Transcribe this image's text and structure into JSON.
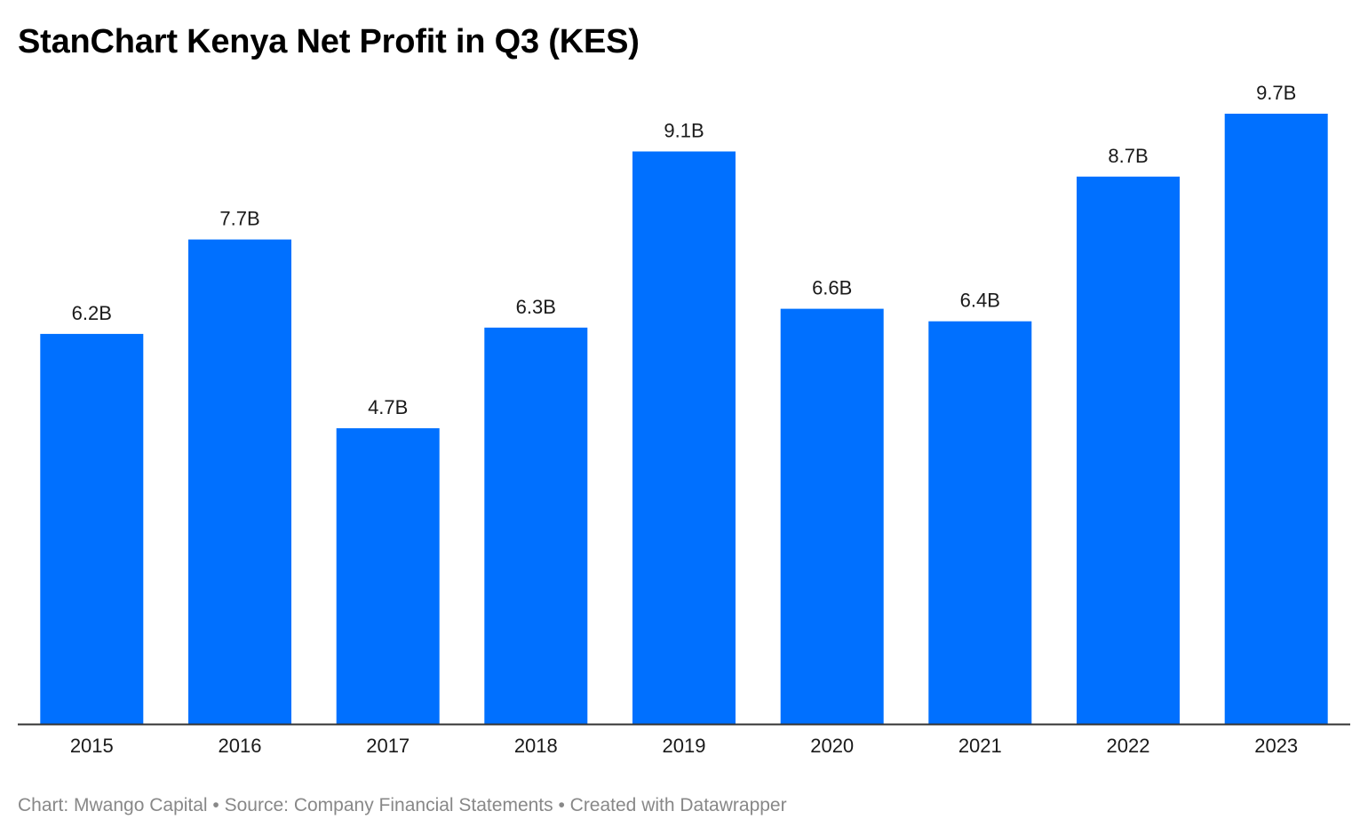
{
  "title": "StanChart Kenya Net Profit in Q3 (KES)",
  "footer": {
    "text": "Chart: Mwango Capital • Source: Company Financial Statements • Created with Datawrapper"
  },
  "colors": {
    "bar": "#0070ff",
    "axis": "#333333",
    "label": "#1a1a1a"
  },
  "chart_data": {
    "type": "bar",
    "title": "StanChart Kenya Net Profit in Q3 (KES)",
    "categories": [
      "2015",
      "2016",
      "2017",
      "2018",
      "2019",
      "2020",
      "2021",
      "2022",
      "2023"
    ],
    "values": [
      6.2,
      7.7,
      4.7,
      6.3,
      9.1,
      6.6,
      6.4,
      8.7,
      9.7
    ],
    "value_labels": [
      "6.2B",
      "7.7B",
      "4.7B",
      "6.3B",
      "9.1B",
      "6.6B",
      "6.4B",
      "8.7B",
      "9.7B"
    ],
    "unit": "B",
    "xlabel": "",
    "ylabel": "",
    "ylim": [
      0,
      9.7
    ],
    "grid": false,
    "legend": "none"
  }
}
